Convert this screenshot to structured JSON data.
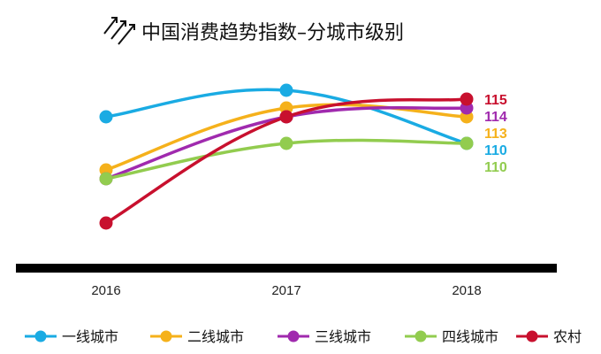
{
  "chart_data": {
    "type": "line",
    "title": "中国消费趋势指数–分城市级别",
    "categories": [
      "2016",
      "2017",
      "2018"
    ],
    "ylim": [
      95,
      118
    ],
    "grid": false,
    "legend_position": "bottom",
    "series": [
      {
        "name": "一线城市",
        "color": "#1AABE3",
        "values": [
          113,
          116,
          110
        ],
        "end_label": "110"
      },
      {
        "name": "二线城市",
        "color": "#F5B11B",
        "values": [
          107,
          114,
          113
        ],
        "end_label": "113"
      },
      {
        "name": "三线城市",
        "color": "#A02AAE",
        "values": [
          106,
          113,
          114
        ],
        "end_label": "114"
      },
      {
        "name": "四线城市",
        "color": "#92CC4F",
        "values": [
          106,
          110,
          110
        ],
        "end_label": "110"
      },
      {
        "name": "农村",
        "color": "#C8102E",
        "values": [
          101,
          113,
          115
        ],
        "end_label": "115"
      }
    ]
  }
}
